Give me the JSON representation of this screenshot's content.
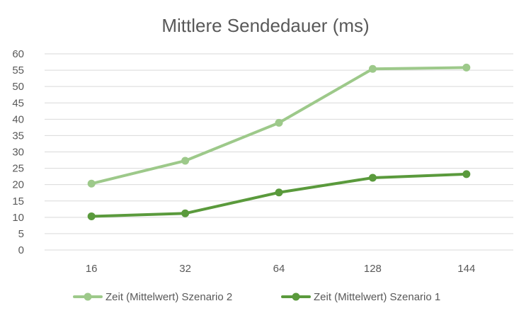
{
  "chart_data": {
    "type": "line",
    "title": "Mittlere Sendedauer (ms)",
    "xlabel": "",
    "ylabel": "",
    "categories": [
      "16",
      "32",
      "64",
      "128",
      "144"
    ],
    "ylim": [
      0,
      60
    ],
    "yticks": [
      0,
      5,
      10,
      15,
      20,
      25,
      30,
      35,
      40,
      45,
      50,
      55,
      60
    ],
    "grid": true,
    "legend_position": "bottom",
    "series": [
      {
        "name": "Zeit (Mittelwert) Szenario 2",
        "color": "#9dc98a",
        "values": [
          20.3,
          27.3,
          38.9,
          55.4,
          55.8
        ]
      },
      {
        "name": "Zeit (Mittelwert) Szenario 1",
        "color": "#5a9a3c",
        "values": [
          10.3,
          11.2,
          17.6,
          22.1,
          23.2
        ]
      }
    ]
  }
}
